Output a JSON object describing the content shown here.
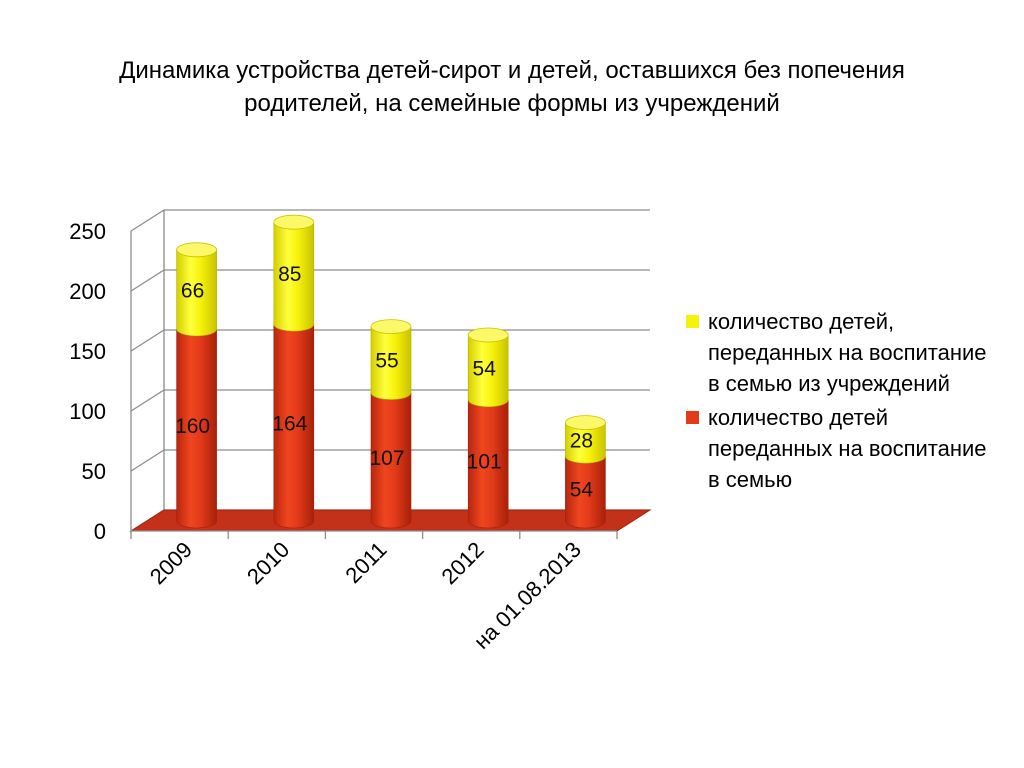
{
  "title": {
    "line1": "Динамика устройства детей-сирот и детей, оставшихся без попечения",
    "line2": "родителей, на семейные формы из учреждений"
  },
  "colors": {
    "bottom_series": "#e23a1a",
    "top_series": "#f7f20a",
    "floor": "#c4311a"
  },
  "chart_data": {
    "type": "bar",
    "stacked": true,
    "three_d": true,
    "categories": [
      "2009",
      "2010",
      "2011",
      "2012",
      "на 01.08.2013"
    ],
    "series": [
      {
        "name": "количество детей переданных на воспитание в семью",
        "color": "#e23a1a",
        "values": [
          160,
          164,
          107,
          101,
          54
        ]
      },
      {
        "name": "количество детей, переданных на воспитание в семью из учреждений",
        "color": "#f7f20a",
        "values": [
          66,
          85,
          55,
          54,
          28
        ]
      }
    ],
    "ylim": [
      0,
      250
    ],
    "yticks": [
      0,
      50,
      100,
      150,
      200,
      250
    ],
    "grid": true,
    "legend_position": "right",
    "xlabel": "",
    "ylabel": ""
  },
  "legend": [
    {
      "label": "количество детей, переданных на воспитание в семью из учреждений",
      "color": "#f7f20a"
    },
    {
      "label": "количество детей переданных на воспитание в семью",
      "color": "#e23a1a"
    }
  ]
}
